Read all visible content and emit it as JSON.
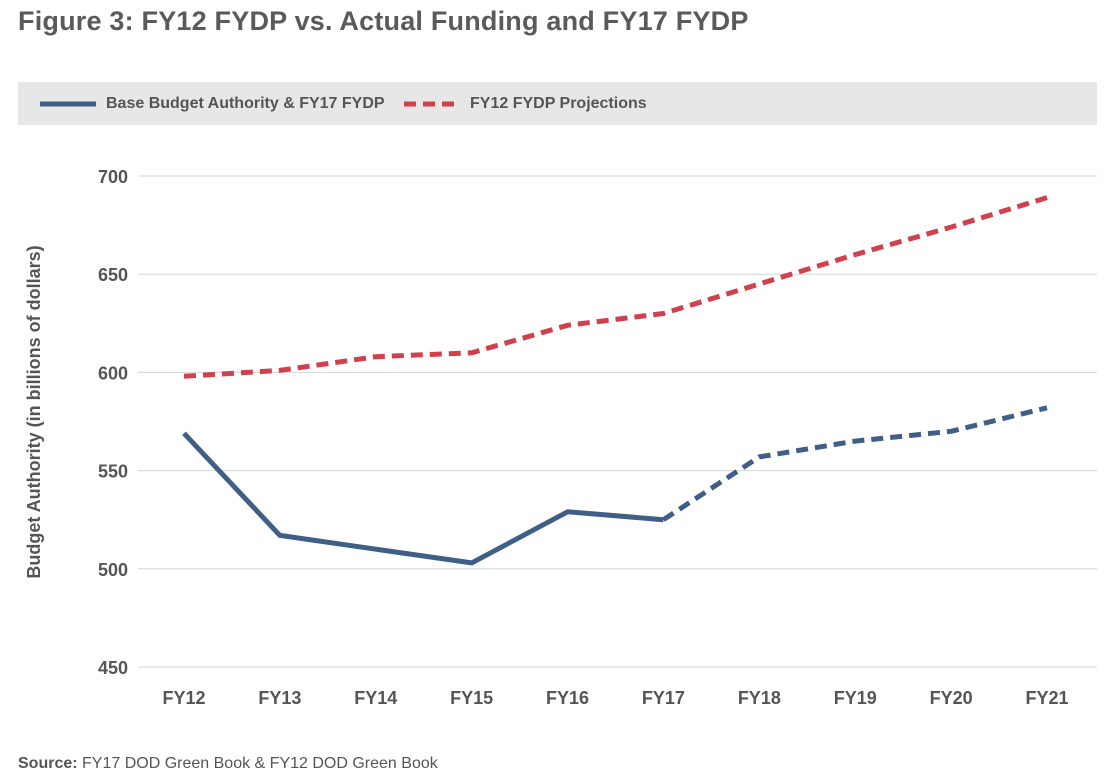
{
  "title": "Figure 3: FY12 FYDP vs. Actual Funding and FY17 FYDP",
  "source": {
    "label": "Source:",
    "text": "FY17 DOD Green Book & FY12 DOD Green Book"
  },
  "colors": {
    "base": "#3f5f86",
    "fy12": "#d0404d",
    "grid": "#d6d6d6",
    "legend_bg": "#e7e7e7"
  },
  "chart_data": {
    "type": "line",
    "title": "Figure 3: FY12 FYDP vs. Actual Funding and FY17 FYDP",
    "xlabel": "",
    "ylabel": "Budget Authority (in billions of dollars)",
    "ylim": [
      450,
      700
    ],
    "yticks": [
      450,
      500,
      550,
      600,
      650,
      700
    ],
    "grid": true,
    "legend_position": "top",
    "categories": [
      "FY12",
      "FY13",
      "FY14",
      "FY15",
      "FY16",
      "FY17",
      "FY18",
      "FY19",
      "FY20",
      "FY21"
    ],
    "series": [
      {
        "name": "Base Budget Authority & FY17 FYDP",
        "color": "#3f5f86",
        "style": "solid through FY17, dashed FY17-FY21",
        "values": [
          569,
          517,
          510,
          503,
          529,
          525,
          557,
          565,
          570,
          582
        ]
      },
      {
        "name": "FY12 FYDP Projections",
        "color": "#d0404d",
        "style": "dashed",
        "values": [
          598,
          601,
          608,
          610,
          624,
          630,
          645,
          660,
          674,
          689
        ]
      }
    ]
  }
}
